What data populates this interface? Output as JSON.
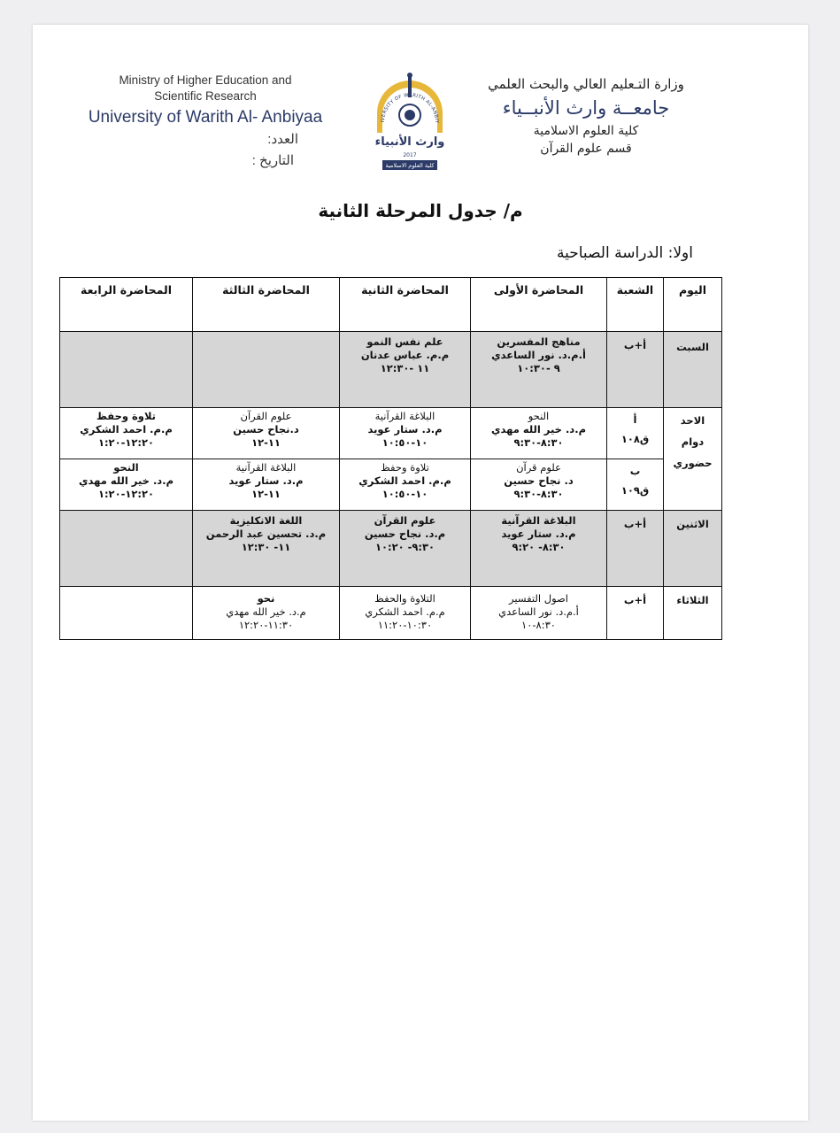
{
  "header": {
    "ar_ministry": "وزارة التـعليم العالي والبحث العلمي",
    "ar_university": "جامعــة وارث الأنبــياء",
    "ar_college": "كلية العلوم الاسلامية",
    "ar_department": "قسم علوم القرآن",
    "en_ministry_line1": "Ministry of Higher Education and",
    "en_ministry_line2": "Scientific Research",
    "en_university": "University of Warith Al- Anbiyaa",
    "number_label": "العدد:",
    "date_label": "التاريخ :"
  },
  "logo": {
    "arc_text": "UNIVERSITY OF WARITH AL-ANBIYAA",
    "name_text": "وارث الأنبياء",
    "year": "2017",
    "college_text": "كلية العلوم الاسلامية"
  },
  "title": "م/ جدول المرحلة الثانية",
  "subtitle": "اولا: الدراسة الصباحية",
  "table": {
    "headers": [
      "اليوم",
      "الشعبة",
      "المحاضرة الأولى",
      "المحاضرة الثانية",
      "المحاضرة الثالثة",
      "المحاضرة الرابعة"
    ],
    "saturday": {
      "day": "السبت",
      "section": "أ+ب",
      "l1": [
        "مناهج المفسرين",
        "أ.م.د. نور الساعدي",
        "٩ -١٠:٣٠"
      ],
      "l2": [
        "علم نفس النمو",
        "م.م. عباس عدنان",
        "١١ -١٢:٣٠"
      ]
    },
    "sunday": {
      "day": [
        "الاحد",
        "دوام",
        "حضوري"
      ],
      "a": {
        "section": [
          "أ",
          "ق١٠٨"
        ],
        "l1": [
          "النحو",
          "م.د. خير الله مهدي",
          "٨:٣٠-٩:٣٠"
        ],
        "l2": [
          "البلاغة القرآنية",
          "م.د. ستار عويد",
          "١٠-١٠:٥٠"
        ],
        "l3": [
          "علوم القرآن",
          "د.نجاح حسين",
          "١١-١٢"
        ],
        "l4": [
          "تلاوة وحفظ",
          "م.م. احمد الشكري",
          "١٢:٢٠-١:٢٠"
        ]
      },
      "b": {
        "section": [
          "ب",
          "ق١٠٩"
        ],
        "l1": [
          "علوم قرآن",
          "د. نجاح حسين",
          "٨:٣٠-٩:٣٠"
        ],
        "l2": [
          "تلاوة وحفظ",
          "م.م. احمد الشكري",
          "١٠-١٠:٥٠"
        ],
        "l3": [
          "البلاغة القرآنية",
          "م.د. ستار عويد",
          "١١-١٢"
        ],
        "l4": [
          "النحو",
          "م.د. خير الله مهدي",
          "١٢:٢٠-١:٢٠"
        ]
      }
    },
    "monday": {
      "day": "الاثنين",
      "section": "أ+ب",
      "l1": [
        "البلاغة القرآنية",
        "م.د. ستار عويد",
        "٨:٣٠- ٩:٢٠"
      ],
      "l2": [
        "علوم القرآن",
        "م.د. نجاح حسين",
        "٩:٣٠- ١٠:٢٠"
      ],
      "l3": [
        "اللغة الانكليزية",
        "م.د. تحسين عبد الرحمن",
        "١١- ١٢:٣٠"
      ]
    },
    "tuesday": {
      "day": "الثلاثاء",
      "section": "أ+ب",
      "l1": [
        "اصول التفسير",
        "أ.م.د. نور الساعدي",
        "٨:٣٠-١٠"
      ],
      "l2": [
        "التلاوة والحفظ",
        "م.م. احمد الشكري",
        "١٠:٣٠-١١:٢٠"
      ],
      "l3": [
        "نحو",
        "م.د. خير الله مهدي",
        "١١:٣٠-١٢:٢٠"
      ]
    }
  }
}
